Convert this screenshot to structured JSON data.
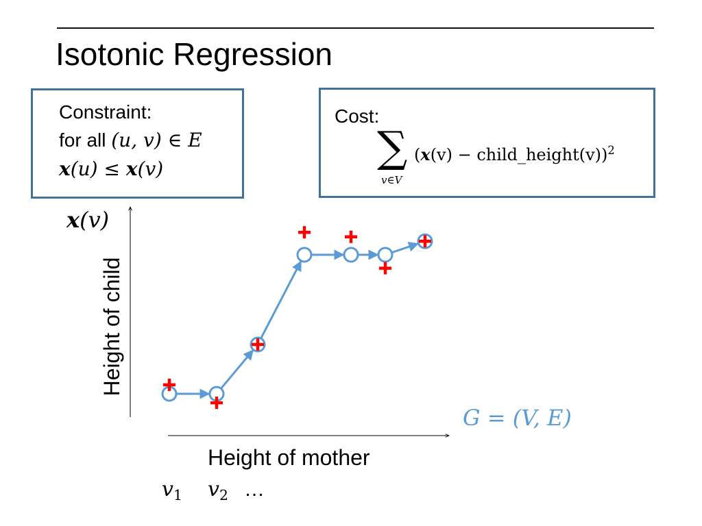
{
  "slide": {
    "title": "Isotonic Regression"
  },
  "constraint_box": {
    "line1": "Constraint:",
    "line2_text": "for all ",
    "line2_math": "(u, v) ∈ E",
    "line3_a": "x",
    "line3_b": "(u) ≤ ",
    "line3_c": "x",
    "line3_d": "(v)"
  },
  "cost_box": {
    "label": "Cost:",
    "sigma": "∑",
    "sigma_sub": "v∈V",
    "open": "(",
    "x": "x",
    "mid": "(v) − child_height(v))",
    "exp": "2"
  },
  "axes": {
    "y_symbol_x": "x",
    "y_symbol_rest": "(v)",
    "y_label": "Height of child",
    "x_label": "Height of mother",
    "x_ticks": {
      "v": "v",
      "one": "1",
      "two": "2",
      "dots": "…"
    }
  },
  "graph_label": "G = (V, E)",
  "colors": {
    "node_stroke": "#5b9bd5",
    "edge": "#5b9bd5",
    "plus": "#ff0000",
    "box_border": "#41719c"
  },
  "diagram_data": {
    "fitted_nodes": [
      {
        "id": "n1",
        "x": 1,
        "y": 1.0
      },
      {
        "id": "n2",
        "x": 2,
        "y": 1.0
      },
      {
        "id": "n3",
        "x": 3,
        "y": 2.1
      },
      {
        "id": "n4",
        "x": 4,
        "y": 4.1
      },
      {
        "id": "n5",
        "x": 5,
        "y": 4.1
      },
      {
        "id": "n6",
        "x": 6,
        "y": 4.1
      },
      {
        "id": "n7",
        "x": 7,
        "y": 4.4
      }
    ],
    "observed_points": [
      {
        "id": "p1",
        "x": 1,
        "y": 1.2
      },
      {
        "id": "p2",
        "x": 2,
        "y": 0.8
      },
      {
        "id": "p3",
        "x": 3,
        "y": 2.1
      },
      {
        "id": "p4",
        "x": 4,
        "y": 4.6
      },
      {
        "id": "p5",
        "x": 5,
        "y": 4.5
      },
      {
        "id": "p6",
        "x": 6,
        "y": 3.8
      },
      {
        "id": "p7",
        "x": 7,
        "y": 4.4
      }
    ],
    "edges": [
      [
        "n1",
        "n2"
      ],
      [
        "n2",
        "n3"
      ],
      [
        "n3",
        "n4"
      ],
      [
        "n4",
        "n5"
      ],
      [
        "n5",
        "n6"
      ],
      [
        "n6",
        "n7"
      ]
    ]
  }
}
